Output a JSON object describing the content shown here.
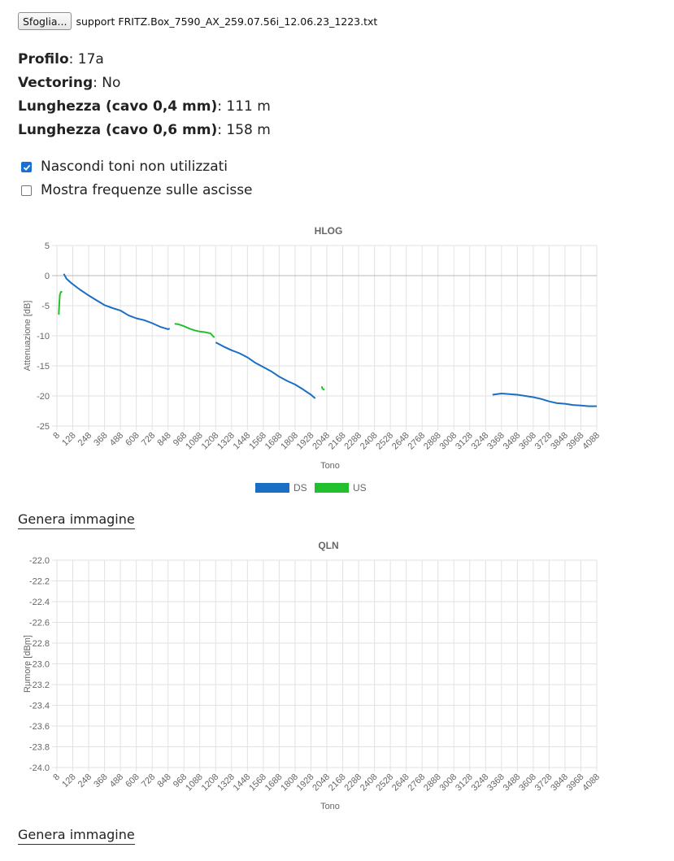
{
  "file": {
    "button_label": "Sfoglia...",
    "filename": "support FRITZ.Box_7590_AX_259.07.56i_12.06.23_1223.txt"
  },
  "info": {
    "profile_label": "Profilo",
    "profile_value": "17a",
    "vectoring_label": "Vectoring",
    "vectoring_value": "No",
    "length04_label": "Lunghezza (cavo 0,4 mm)",
    "length04_value": "111 m",
    "length06_label": "Lunghezza (cavo 0,6 mm)",
    "length06_value": "158 m"
  },
  "options": [
    {
      "label": "Nascondi toni non utilizzati",
      "checked": true
    },
    {
      "label": "Mostra frequenze sulle ascisse",
      "checked": false
    }
  ],
  "generate_label": "Genera immagine",
  "chart_data": [
    {
      "type": "line",
      "title": "HLOG",
      "xlabel": "Tono",
      "ylabel": "Attenuazione [dB]",
      "xlim": [
        8,
        4088
      ],
      "ylim": [
        -25,
        5
      ],
      "yticks": [
        "5",
        "0",
        "-5",
        "-10",
        "-15",
        "-20",
        "-25"
      ],
      "xticks": [
        "8",
        "128",
        "248",
        "368",
        "488",
        "608",
        "728",
        "848",
        "968",
        "1088",
        "1208",
        "1328",
        "1448",
        "1568",
        "1688",
        "1808",
        "1928",
        "2048",
        "2168",
        "2288",
        "2408",
        "2528",
        "2648",
        "2768",
        "2888",
        "3008",
        "3128",
        "3248",
        "3368",
        "3488",
        "3608",
        "3728",
        "3848",
        "3968",
        "4088"
      ],
      "grid": true,
      "legend": "bottom",
      "series": [
        {
          "name": "DS",
          "color": "#1a6fc4",
          "segments": [
            [
              [
                60,
                0.3
              ],
              [
                80,
                -0.5
              ],
              [
                120,
                -1.3
              ],
              [
                180,
                -2.3
              ],
              [
                248,
                -3.3
              ],
              [
                300,
                -4.0
              ],
              [
                368,
                -4.9
              ],
              [
                430,
                -5.4
              ],
              [
                488,
                -5.8
              ],
              [
                548,
                -6.6
              ],
              [
                608,
                -7.1
              ],
              [
                668,
                -7.4
              ],
              [
                728,
                -7.9
              ],
              [
                788,
                -8.5
              ],
              [
                848,
                -8.9
              ],
              [
                860,
                -8.8
              ]
            ],
            [
              [
                1208,
                -11.1
              ],
              [
                1268,
                -11.8
              ],
              [
                1328,
                -12.4
              ],
              [
                1388,
                -12.9
              ],
              [
                1448,
                -13.6
              ],
              [
                1508,
                -14.5
              ],
              [
                1568,
                -15.2
              ],
              [
                1628,
                -15.9
              ],
              [
                1688,
                -16.8
              ],
              [
                1748,
                -17.5
              ],
              [
                1808,
                -18.1
              ],
              [
                1868,
                -18.9
              ],
              [
                1928,
                -19.8
              ],
              [
                1960,
                -20.4
              ]
            ],
            [
              [
                3300,
                -19.8
              ],
              [
                3368,
                -19.6
              ],
              [
                3428,
                -19.7
              ],
              [
                3488,
                -19.8
              ],
              [
                3548,
                -20.0
              ],
              [
                3608,
                -20.2
              ],
              [
                3668,
                -20.5
              ],
              [
                3728,
                -20.9
              ],
              [
                3788,
                -21.2
              ],
              [
                3848,
                -21.3
              ],
              [
                3908,
                -21.5
              ],
              [
                3968,
                -21.6
              ],
              [
                4028,
                -21.7
              ],
              [
                4088,
                -21.7
              ]
            ]
          ]
        },
        {
          "name": "US",
          "color": "#22c02e",
          "segments": [
            [
              [
                22,
                -6.5
              ],
              [
                25,
                -5.0
              ],
              [
                30,
                -3.2
              ],
              [
                38,
                -2.7
              ],
              [
                48,
                -2.7
              ]
            ],
            [
              [
                898,
                -8.0
              ],
              [
                928,
                -8.1
              ],
              [
                968,
                -8.4
              ],
              [
                1008,
                -8.8
              ],
              [
                1048,
                -9.1
              ],
              [
                1088,
                -9.3
              ],
              [
                1128,
                -9.4
              ],
              [
                1168,
                -9.6
              ],
              [
                1198,
                -10.3
              ]
            ],
            [
              [
                2010,
                -18.4
              ],
              [
                2015,
                -18.8
              ],
              [
                2030,
                -19.0
              ]
            ]
          ]
        }
      ]
    },
    {
      "type": "line",
      "title": "QLN",
      "xlabel": "Tono",
      "ylabel": "Rumore [dBm]",
      "xlim": [
        8,
        4088
      ],
      "ylim": [
        -24.0,
        -22.0
      ],
      "yticks": [
        "-22.0",
        "-22.2",
        "-22.4",
        "-22.6",
        "-22.8",
        "-23.0",
        "-23.2",
        "-23.4",
        "-23.6",
        "-23.8",
        "-24.0"
      ],
      "xticks": [
        "8",
        "128",
        "248",
        "368",
        "488",
        "608",
        "728",
        "848",
        "968",
        "1088",
        "1208",
        "1328",
        "1448",
        "1568",
        "1688",
        "1808",
        "1928",
        "2048",
        "2168",
        "2288",
        "2408",
        "2528",
        "2648",
        "2768",
        "2888",
        "3008",
        "3128",
        "3248",
        "3368",
        "3488",
        "3608",
        "3728",
        "3848",
        "3968",
        "4088"
      ],
      "grid": true,
      "legend": "none",
      "series": []
    }
  ]
}
